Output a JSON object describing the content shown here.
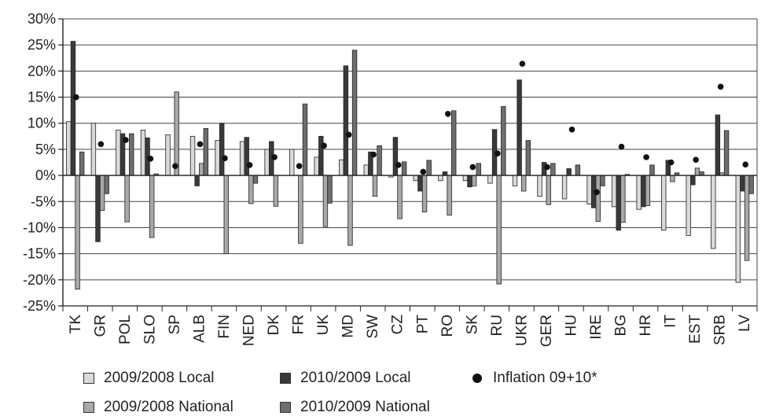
{
  "chart_data": {
    "type": "bar",
    "categories": [
      "TK",
      "GR",
      "POL",
      "SLO",
      "SP",
      "ALB",
      "FIN",
      "NED",
      "DK",
      "FR",
      "UK",
      "MD",
      "SW",
      "CZ",
      "PT",
      "RO",
      "SK",
      "RU",
      "UKR",
      "GER",
      "HU",
      "IRE",
      "BG",
      "HR",
      "IT",
      "EST",
      "SRB",
      "LV"
    ],
    "ylim": [
      -25,
      30
    ],
    "yticks": [
      -25,
      -20,
      -15,
      -10,
      -5,
      0,
      5,
      10,
      15,
      20,
      25,
      30
    ],
    "ytick_labels": [
      "-25%",
      "-20%",
      "-15%",
      "-10%",
      "-5%",
      "0%",
      "5%",
      "10%",
      "15%",
      "20%",
      "25%",
      "30%"
    ],
    "grid": true,
    "legend_position": "bottom",
    "series": [
      {
        "name": "2009/2008 Local",
        "kind": "bar",
        "color": "#d9d9d9",
        "values": [
          10.3,
          10,
          8.7,
          8.7,
          7.8,
          7.5,
          6.7,
          6.5,
          5,
          5,
          3.5,
          3,
          2,
          -0.3,
          -1,
          -1,
          -1,
          -1.5,
          -2,
          -4,
          -4.5,
          -5.5,
          -6,
          -6.5,
          -10.5,
          -11.5,
          -14,
          -20.5
        ]
      },
      {
        "name": "2010/2009 Local",
        "kind": "bar",
        "color": "#3a3a3a",
        "values": [
          25.7,
          -12.7,
          8,
          7.2,
          0,
          -2,
          10,
          7.3,
          6.5,
          0,
          7.5,
          21,
          4.5,
          7.3,
          -3,
          0.7,
          -2.2,
          8.8,
          18.3,
          2.5,
          1.3,
          -6.2,
          -10.5,
          -6,
          2.9,
          -1.8,
          11.6,
          -3
        ]
      },
      {
        "name": "2009/2008 National",
        "kind": "bar",
        "color": "#a8a8a8",
        "values": [
          -21.8,
          -6.7,
          -8.9,
          -11.9,
          16,
          2.3,
          -15,
          -5.4,
          -5.9,
          -13,
          -9.8,
          -13.4,
          -4,
          -8.3,
          -7,
          -7.6,
          -2,
          -20.8,
          -3,
          -5.6,
          0,
          -8.8,
          -9,
          -5.8,
          -1.2,
          1.4,
          0.5,
          -16.3
        ]
      },
      {
        "name": "2010/2009 National",
        "kind": "bar",
        "color": "#6e6e6e",
        "values": [
          4.5,
          -3.5,
          8,
          0.3,
          0,
          9,
          0,
          -1.5,
          0,
          13.7,
          -5.3,
          24,
          5.7,
          2.6,
          2.9,
          12.4,
          2.3,
          13.2,
          6.7,
          2.3,
          2,
          -2,
          0.2,
          2,
          0.5,
          0.7,
          8.6,
          -3.5
        ]
      },
      {
        "name": "Inflation 09+10*",
        "kind": "dot",
        "color": "#111111",
        "values": [
          15,
          6,
          6.8,
          3.2,
          1.8,
          6,
          3.3,
          2,
          3.5,
          1.8,
          5.7,
          7.8,
          4,
          2,
          0.7,
          11.8,
          1.6,
          4.2,
          21.4,
          1.6,
          8.8,
          -3.2,
          5.5,
          3.5,
          2.5,
          3,
          17,
          2.1
        ]
      }
    ]
  }
}
